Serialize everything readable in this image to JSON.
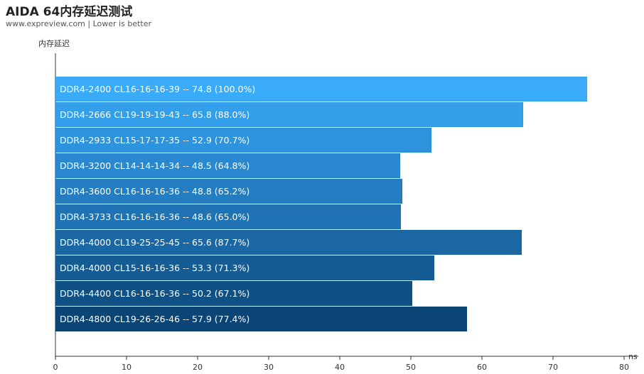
{
  "title": "AIDA 64内存延迟测试",
  "subtitle": "www.expreview.com | Lower is better",
  "chart_data": {
    "type": "bar",
    "orientation": "horizontal",
    "title": "AIDA 64内存延迟测试",
    "subtitle": "www.expreview.com | Lower is better",
    "ylabel": "内存延迟",
    "xlabel": "ns",
    "xlim": [
      0,
      80
    ],
    "xticks": [
      0,
      10,
      20,
      30,
      40,
      50,
      60,
      70,
      80
    ],
    "categories": [
      "DDR4-2400 CL16-16-16-39",
      "DDR4-2666 CL19-19-19-43",
      "DDR4-2933 CL15-17-17-35",
      "DDR4-3200 CL14-14-14-34",
      "DDR4-3600 CL16-16-16-36",
      "DDR4-3733 CL16-16-16-36",
      "DDR4-4000 CL19-25-25-45",
      "DDR4-4000 CL15-16-16-36",
      "DDR4-4400 CL16-16-16-36",
      "DDR4-4800 CL19-26-26-46"
    ],
    "values": [
      74.8,
      65.8,
      52.9,
      48.5,
      48.8,
      48.6,
      65.6,
      53.3,
      50.2,
      57.9
    ],
    "labels": [
      "DDR4-2400 CL16-16-16-39  --  74.8 (100.0%)",
      "DDR4-2666 CL19-19-19-43  --  65.8 (88.0%)",
      "DDR4-2933 CL15-17-17-35  --  52.9 (70.7%)",
      "DDR4-3200 CL14-14-14-34  --  48.5 (64.8%)",
      "DDR4-3600 CL16-16-16-36  --  48.8 (65.2%)",
      "DDR4-3733 CL16-16-16-36  --  48.6 (65.0%)",
      "DDR4-4000 CL19-25-25-45  --  65.6 (87.7%)",
      "DDR4-4000 CL15-16-16-36  --  53.3 (71.3%)",
      "DDR4-4400 CL16-16-16-36  --  50.2 (67.1%)",
      "DDR4-4800 CL19-26-26-46  --  57.9 (77.4%)"
    ],
    "colors": [
      "#3aabf8",
      "#339eea",
      "#2d93dc",
      "#2988cf",
      "#247dc1",
      "#1f72b3",
      "#1a67a4",
      "#155c95",
      "#0f5185",
      "#0a4575"
    ],
    "grid": false,
    "legend": "none"
  }
}
